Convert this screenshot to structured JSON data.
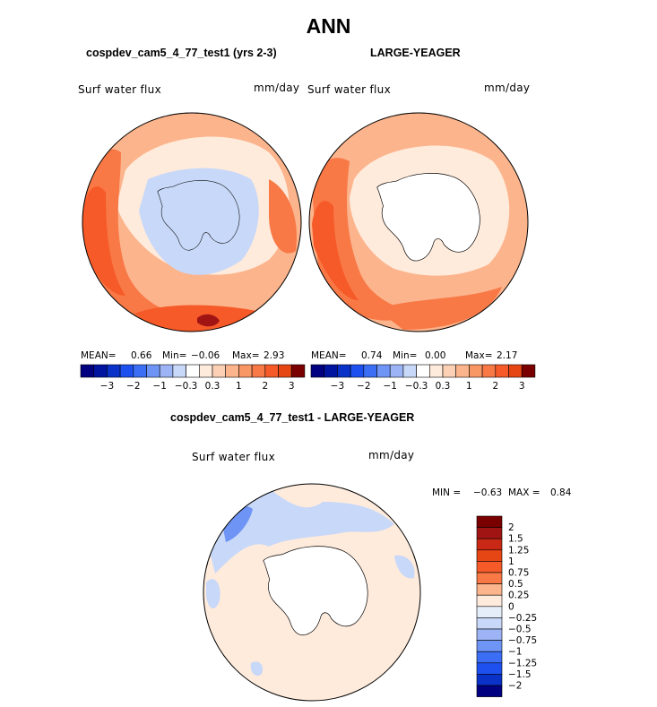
{
  "title": "ANN",
  "colors": {
    "neg": [
      "#000080",
      "#0014a0",
      "#0a32c8",
      "#1e50f0",
      "#3c6ef5",
      "#6e94f5",
      "#9cb4f5",
      "#c8d8f8",
      "#e6eefa"
    ],
    "pos": [
      "#ffebdc",
      "#fcd0b4",
      "#fcb48c",
      "#f89664",
      "#f87846",
      "#f55a28",
      "#e64614",
      "#c82814",
      "#a01414",
      "#7a0000"
    ],
    "ant": "#ffffff",
    "coast": "#000000"
  },
  "panel_left": {
    "subtitle": "cospdev_cam5_4_77_test1 (yrs 2-3)",
    "variable": "Surf water flux",
    "units": "mm/day",
    "mean_label": "MEAN=",
    "mean_value": "0.66",
    "min_label": "Min=",
    "min_value": "−0.06",
    "max_label": "Max=",
    "max_value": "2.93"
  },
  "panel_right": {
    "subtitle": "LARGE-YEAGER",
    "variable": "Surf water flux",
    "units": "mm/day",
    "mean_label": "MEAN=",
    "mean_value": "0.74",
    "min_label": "Min=",
    "min_value": "0.00",
    "max_label": "Max=",
    "max_value": "2.17"
  },
  "panel_diff": {
    "subtitle": "cospdev_cam5_4_77_test1 - LARGE-YEAGER",
    "variable": "Surf water flux",
    "units": "mm/day",
    "min_label": "MIN =",
    "min_value": "−0.63",
    "max_label": "MAX =",
    "max_value": "0.84"
  },
  "chart_data": [
    {
      "type": "heatmap",
      "projection": "south-polar-stereographic",
      "title": "cospdev_cam5_4_77_test1 (yrs 2-3)",
      "variable": "Surf water flux",
      "units": "mm/day",
      "mean": 0.66,
      "min": -0.06,
      "max": 2.93,
      "colorbar_levels": [
        -3,
        -2.5,
        -2,
        -1.5,
        -1,
        -0.6,
        -0.3,
        -0.1,
        0.1,
        0.3,
        0.6,
        1,
        1.5,
        2,
        2.5,
        3
      ],
      "colorbar_labels": [
        "−3",
        "−2",
        "−1",
        "−0.3",
        "0.3",
        "1",
        "2",
        "3"
      ]
    },
    {
      "type": "heatmap",
      "projection": "south-polar-stereographic",
      "title": "LARGE-YEAGER",
      "variable": "Surf water flux",
      "units": "mm/day",
      "mean": 0.74,
      "min": 0.0,
      "max": 2.17,
      "colorbar_levels": [
        -3,
        -2.5,
        -2,
        -1.5,
        -1,
        -0.6,
        -0.3,
        -0.1,
        0.1,
        0.3,
        0.6,
        1,
        1.5,
        2,
        2.5,
        3
      ],
      "colorbar_labels": [
        "−3",
        "−2",
        "−1",
        "−0.3",
        "0.3",
        "1",
        "2",
        "3"
      ]
    },
    {
      "type": "heatmap",
      "projection": "south-polar-stereographic",
      "title": "cospdev_cam5_4_77_test1 - LARGE-YEAGER",
      "variable": "Surf water flux",
      "units": "mm/day",
      "min": -0.63,
      "max": 0.84,
      "colorbar_levels": [
        2,
        1.5,
        1.25,
        1,
        0.75,
        0.5,
        0.25,
        0,
        -0.25,
        -0.5,
        -0.75,
        -1,
        -1.25,
        -1.5,
        -2
      ],
      "colorbar_labels": [
        "2",
        "1.5",
        "1.25",
        "1",
        "0.75",
        "0.5",
        "0.25",
        "0",
        "−0.25",
        "−0.5",
        "−0.75",
        "−1",
        "−1.25",
        "−1.5",
        "−2"
      ]
    }
  ]
}
